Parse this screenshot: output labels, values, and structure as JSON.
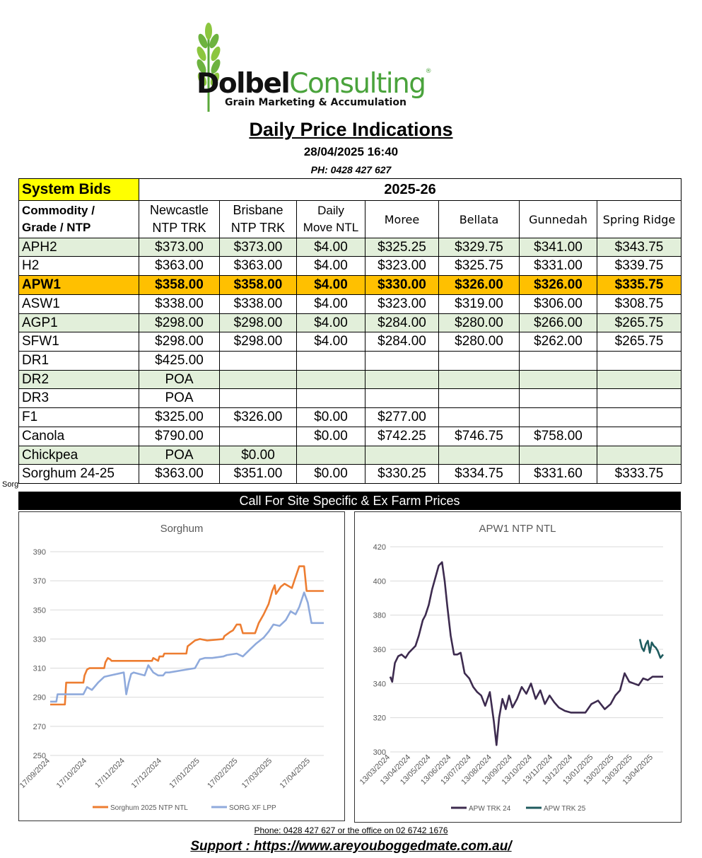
{
  "logo": {
    "brand_bold": "Dolbel",
    "brand_light": "Consulting",
    "reg_mark": "®",
    "tagline": "Grain Marketing & Accumulation"
  },
  "header": {
    "title": "Daily Price Indications",
    "datetime": "28/04/2025 16:40",
    "phone": "PH: 0428 427 627"
  },
  "table": {
    "system_bids": "System Bids",
    "season": "2025-26",
    "col_commodity": [
      "Commodity /",
      "Grade / NTP"
    ],
    "columns": [
      [
        "Newcastle",
        "NTP TRK"
      ],
      [
        "Brisbane",
        "NTP TRK"
      ],
      [
        "Daily",
        "Move NTL"
      ],
      [
        "Moree"
      ],
      [
        "Bellata"
      ],
      [
        "Gunnedah"
      ],
      [
        "Spring Ridge"
      ]
    ],
    "rows": [
      {
        "grade": "APH2",
        "style": "green",
        "vals": [
          "$373.00",
          "$373.00",
          "$4.00",
          "$325.25",
          "$329.75",
          "$341.00",
          "$343.75"
        ]
      },
      {
        "grade": "H2",
        "style": "white",
        "vals": [
          "$363.00",
          "$363.00",
          "$4.00",
          "$323.00",
          "$325.75",
          "$331.00",
          "$339.75"
        ]
      },
      {
        "grade": "APW1",
        "style": "apw",
        "vals": [
          "$358.00",
          "$358.00",
          "$4.00",
          "$330.00",
          "$326.00",
          "$326.00",
          "$335.75"
        ]
      },
      {
        "grade": "ASW1",
        "style": "white",
        "vals": [
          "$338.00",
          "$338.00",
          "$4.00",
          "$323.00",
          "$319.00",
          "$306.00",
          "$308.75"
        ]
      },
      {
        "grade": "AGP1",
        "style": "green",
        "vals": [
          "$298.00",
          "$298.00",
          "$4.00",
          "$284.00",
          "$280.00",
          "$266.00",
          "$265.75"
        ]
      },
      {
        "grade": "SFW1",
        "style": "white",
        "vals": [
          "$298.00",
          "$298.00",
          "$4.00",
          "$284.00",
          "$280.00",
          "$262.00",
          "$265.75"
        ]
      },
      {
        "grade": "DR1",
        "style": "white",
        "vals": [
          "$425.00",
          "",
          "",
          "",
          "",
          "",
          ""
        ]
      },
      {
        "grade": "DR2",
        "style": "green",
        "vals": [
          "POA",
          "",
          "",
          "",
          "",
          "",
          ""
        ]
      },
      {
        "grade": "DR3",
        "style": "white",
        "vals": [
          "POA",
          "",
          "",
          "",
          "",
          "",
          ""
        ]
      },
      {
        "grade": "F1",
        "style": "white",
        "vals": [
          "$325.00",
          "$326.00",
          "$0.00",
          "$277.00",
          "",
          "",
          ""
        ]
      },
      {
        "grade": "Canola",
        "style": "white",
        "vals": [
          "$790.00",
          "",
          "$0.00",
          "$742.25",
          "$746.75",
          "$758.00",
          ""
        ]
      },
      {
        "grade": "Chickpea",
        "style": "green",
        "vals": [
          "POA",
          "$0.00",
          "",
          "",
          "",
          "",
          ""
        ]
      },
      {
        "grade": "Sorghum 24-25",
        "style": "white",
        "vals": [
          "$363.00",
          "$351.00",
          "$0.00",
          "$330.25",
          "$334.75",
          "$331.60",
          "$333.75"
        ]
      }
    ],
    "side_label": "Sorg",
    "banner": "Call For Site Specific & Ex Farm Prices"
  },
  "chart_data": [
    {
      "type": "line",
      "title": "Sorghum",
      "ylim": [
        250,
        390
      ],
      "yticks": [
        250,
        270,
        290,
        310,
        330,
        350,
        370,
        390
      ],
      "x_range": [
        "2024-09-17",
        "2025-04-28"
      ],
      "xticks": [
        "17/09/2024",
        "17/10/2024",
        "17/11/2024",
        "17/12/2024",
        "17/01/2025",
        "17/02/2025",
        "17/03/2025",
        "17/04/2025"
      ],
      "grid": true,
      "legend": "bottom",
      "series": [
        {
          "name": "Sorghum  2025 NTP NTL",
          "color": "#ed7d31",
          "x": [
            "2024-09-17",
            "2024-09-29",
            "2024-09-30",
            "2024-10-14",
            "2024-10-15",
            "2024-10-17",
            "2024-10-19",
            "2024-10-31",
            "2024-11-01",
            "2024-11-03",
            "2024-11-05",
            "2024-11-06",
            "2024-11-08",
            "2024-11-23",
            "2024-12-09",
            "2024-12-10",
            "2024-12-14",
            "2024-12-15",
            "2024-12-18",
            "2024-12-19",
            "2025-01-06",
            "2025-01-07",
            "2025-01-10",
            "2025-01-13",
            "2025-01-17",
            "2025-01-23",
            "2025-02-05",
            "2025-02-06",
            "2025-02-11",
            "2025-02-13",
            "2025-02-16",
            "2025-02-19",
            "2025-02-21",
            "2025-02-25",
            "2025-03-03",
            "2025-03-06",
            "2025-03-10",
            "2025-03-14",
            "2025-03-17",
            "2025-03-19",
            "2025-03-20",
            "2025-03-24",
            "2025-03-27",
            "2025-04-02",
            "2025-04-04",
            "2025-04-08",
            "2025-04-12",
            "2025-04-14",
            "2025-04-17",
            "2025-04-21",
            "2025-04-28"
          ],
          "y": [
            285,
            285,
            300,
            300,
            305,
            309,
            310,
            310,
            314,
            317,
            316,
            315,
            315,
            315,
            315,
            317,
            315,
            318,
            318,
            320,
            320,
            325,
            327,
            329,
            330,
            329,
            330,
            332,
            335,
            336,
            340,
            340,
            334,
            334,
            334,
            341,
            347,
            354,
            363,
            367,
            361,
            366,
            368,
            365,
            370,
            380,
            380,
            363,
            363,
            363,
            363
          ]
        },
        {
          "name": "SORG XF LPP",
          "color": "#8faadc",
          "x": [
            "2024-09-17",
            "2024-09-22",
            "2024-09-23",
            "2024-10-14",
            "2024-10-17",
            "2024-10-21",
            "2024-10-26",
            "2024-10-31",
            "2024-11-05",
            "2024-11-16",
            "2024-11-18",
            "2024-11-20",
            "2024-11-22",
            "2024-11-24",
            "2024-12-03",
            "2024-12-06",
            "2024-12-10",
            "2024-12-14",
            "2024-12-18",
            "2024-12-20",
            "2024-12-23",
            "2025-01-13",
            "2025-01-17",
            "2025-01-21",
            "2025-01-27",
            "2025-02-05",
            "2025-02-08",
            "2025-02-16",
            "2025-02-21",
            "2025-02-27",
            "2025-03-04",
            "2025-03-10",
            "2025-03-14",
            "2025-03-18",
            "2025-03-23",
            "2025-03-28",
            "2025-04-01",
            "2025-04-05",
            "2025-04-08",
            "2025-04-12",
            "2025-04-15",
            "2025-04-18",
            "2025-04-28"
          ],
          "y": [
            287,
            287,
            292,
            292,
            297,
            295,
            300,
            304,
            305,
            307,
            292,
            300,
            306,
            307,
            305,
            312,
            307,
            305,
            305,
            307,
            307,
            310,
            316,
            317,
            317,
            318,
            319,
            320,
            318,
            323,
            327,
            331,
            335,
            340,
            339,
            343,
            349,
            347,
            352,
            362,
            355,
            341,
            341
          ]
        }
      ]
    },
    {
      "type": "line",
      "title": "APW1 NTP NTL",
      "ylim": [
        300,
        420
      ],
      "yticks": [
        300,
        320,
        340,
        360,
        380,
        400,
        420
      ],
      "x_range": [
        "2024-03-13",
        "2025-04-28"
      ],
      "xticks": [
        "13/03/2024",
        "13/04/2024",
        "13/05/2024",
        "13/06/2024",
        "13/07/2024",
        "13/08/2024",
        "13/09/2024",
        "13/10/2024",
        "13/11/2024",
        "13/12/2024",
        "13/01/2025",
        "13/02/2025",
        "13/03/2025",
        "13/04/2025"
      ],
      "grid": true,
      "legend": "bottom",
      "series": [
        {
          "name": "APW TRK 24",
          "color": "#3d2b4f",
          "x": [
            "2024-03-13",
            "2024-03-16",
            "2024-03-20",
            "2024-03-25",
            "2024-03-30",
            "2024-04-05",
            "2024-04-10",
            "2024-04-15",
            "2024-04-20",
            "2024-04-25",
            "2024-05-01",
            "2024-05-05",
            "2024-05-10",
            "2024-05-15",
            "2024-05-20",
            "2024-05-25",
            "2024-05-30",
            "2024-06-03",
            "2024-06-07",
            "2024-06-12",
            "2024-06-17",
            "2024-06-22",
            "2024-06-27",
            "2024-07-03",
            "2024-07-10",
            "2024-07-16",
            "2024-07-22",
            "2024-07-28",
            "2024-08-03",
            "2024-08-10",
            "2024-08-16",
            "2024-08-20",
            "2024-08-24",
            "2024-08-29",
            "2024-09-03",
            "2024-09-08",
            "2024-09-13",
            "2024-09-20",
            "2024-09-27",
            "2024-10-04",
            "2024-10-11",
            "2024-10-18",
            "2024-10-25",
            "2024-11-01",
            "2024-11-08",
            "2024-11-15",
            "2024-11-22",
            "2024-12-01",
            "2024-12-10",
            "2024-12-20",
            "2025-01-01",
            "2025-01-10",
            "2025-01-20",
            "2025-01-30",
            "2025-02-08",
            "2025-02-15",
            "2025-02-22",
            "2025-03-01",
            "2025-03-08",
            "2025-03-15",
            "2025-03-22",
            "2025-03-29",
            "2025-04-05",
            "2025-04-12",
            "2025-04-20",
            "2025-04-28"
          ],
          "y": [
            344,
            341,
            352,
            356,
            357,
            355,
            358,
            360,
            362,
            368,
            377,
            380,
            386,
            395,
            402,
            409,
            411,
            400,
            385,
            368,
            357,
            357,
            358,
            346,
            343,
            338,
            335,
            333,
            327,
            335,
            318,
            304,
            320,
            331,
            325,
            333,
            326,
            331,
            338,
            334,
            340,
            331,
            336,
            328,
            333,
            329,
            326,
            324,
            323,
            323,
            323,
            328,
            330,
            325,
            328,
            333,
            336,
            346,
            341,
            340,
            339,
            343,
            342,
            344,
            344,
            344
          ]
        },
        {
          "name": "APW TRK 25",
          "color": "#1f5b5e",
          "x": [
            "2025-03-24",
            "2025-03-27",
            "2025-03-30",
            "2025-04-02",
            "2025-04-05",
            "2025-04-08",
            "2025-04-11",
            "2025-04-14",
            "2025-04-17",
            "2025-04-20",
            "2025-04-24",
            "2025-04-28"
          ],
          "y": [
            366,
            361,
            359,
            363,
            365,
            358,
            364,
            362,
            361,
            359,
            355,
            357
          ]
        }
      ]
    }
  ],
  "footer": {
    "phone": "Phone: 0428 427 627 or the office on 02 6742 1676",
    "support": "Support : https://www.areyouboggedmate.com.au/"
  }
}
